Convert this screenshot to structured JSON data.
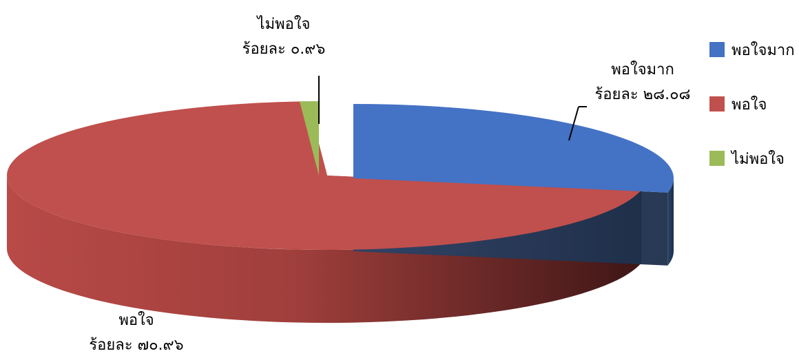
{
  "chart_data": {
    "type": "pie",
    "categories": [
      "พอใจมาก",
      "พอใจ",
      "ไม่พอใจ"
    ],
    "values": [
      28.08,
      70.96,
      0.96
    ],
    "value_labels": [
      "ร้อยละ ๒๘.๐๘",
      "ร้อยละ ๗๐.๙๖",
      "ร้อยละ ๐.๙๖"
    ],
    "colors": [
      "#4472C4",
      "#C0504D",
      "#9BBB59"
    ],
    "three_d": true,
    "exploded": true,
    "legend_position": "right"
  }
}
